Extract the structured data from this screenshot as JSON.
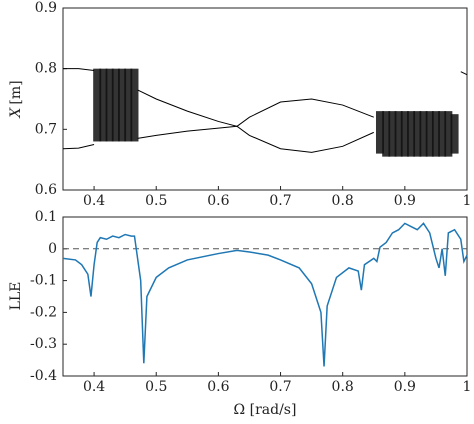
{
  "chart_data": [
    {
      "type": "bifurcation",
      "ylabel_symbol": "X",
      "ylabel_unit": "[m]",
      "x": [
        0.35,
        0.375,
        0.4,
        0.43,
        0.47,
        0.5,
        0.55,
        0.6,
        0.63,
        0.65,
        0.7,
        0.75,
        0.8,
        0.85,
        0.92,
        0.99,
        1.0
      ],
      "series": [
        {
          "name": "upper",
          "color": "#000000",
          "values": [
            0.8,
            0.8,
            0.797,
            null,
            0.765,
            0.75,
            0.73,
            0.713,
            0.705,
            0.72,
            0.745,
            0.75,
            0.74,
            0.72,
            null,
            0.795,
            0.79
          ]
        },
        {
          "name": "lower",
          "color": "#000000",
          "values": [
            0.668,
            0.669,
            0.675,
            null,
            0.685,
            0.69,
            0.697,
            0.702,
            0.705,
            0.69,
            0.668,
            0.662,
            0.672,
            0.695,
            null,
            null,
            null
          ]
        }
      ],
      "bands": [
        {
          "x": [
            0.405,
            0.415,
            0.425,
            0.435,
            0.445,
            0.455,
            0.465
          ],
          "low": [
            0.68,
            0.68,
            0.68,
            0.68,
            0.68,
            0.68,
            0.68
          ],
          "high": [
            0.8,
            0.8,
            0.8,
            0.8,
            0.8,
            0.8,
            0.8
          ]
        },
        {
          "x": [
            0.86,
            0.87,
            0.88,
            0.89,
            0.9,
            0.91,
            0.92,
            0.93,
            0.94,
            0.95,
            0.96,
            0.97,
            0.98
          ],
          "low": [
            0.66,
            0.655,
            0.655,
            0.655,
            0.655,
            0.655,
            0.655,
            0.655,
            0.655,
            0.655,
            0.655,
            0.655,
            0.66
          ],
          "high": [
            0.73,
            0.73,
            0.73,
            0.73,
            0.73,
            0.73,
            0.73,
            0.73,
            0.73,
            0.73,
            0.73,
            0.73,
            0.725
          ]
        }
      ],
      "xlim": [
        0.35,
        1.0
      ],
      "xticks": [
        0.4,
        0.5,
        0.6,
        0.7,
        0.8,
        0.9,
        1
      ],
      "ylim": [
        0.6,
        0.9
      ],
      "yticks": [
        0.6,
        0.7,
        0.8,
        0.9
      ]
    },
    {
      "type": "line",
      "ylabel": "LLE",
      "xlabel": "Ω [rad/s]",
      "reference_line": 0,
      "x": [
        0.35,
        0.37,
        0.38,
        0.39,
        0.395,
        0.4,
        0.405,
        0.41,
        0.42,
        0.43,
        0.44,
        0.45,
        0.46,
        0.465,
        0.47,
        0.475,
        0.48,
        0.485,
        0.5,
        0.52,
        0.55,
        0.6,
        0.63,
        0.65,
        0.68,
        0.7,
        0.73,
        0.75,
        0.765,
        0.77,
        0.775,
        0.79,
        0.81,
        0.825,
        0.83,
        0.835,
        0.85,
        0.855,
        0.86,
        0.87,
        0.88,
        0.89,
        0.9,
        0.91,
        0.92,
        0.93,
        0.94,
        0.95,
        0.955,
        0.96,
        0.965,
        0.97,
        0.98,
        0.99,
        0.995,
        1.0
      ],
      "series": [
        {
          "name": "LLE",
          "color": "#1f77b4",
          "values": [
            -0.03,
            -0.035,
            -0.05,
            -0.08,
            -0.15,
            -0.05,
            0.02,
            0.035,
            0.03,
            0.04,
            0.035,
            0.045,
            0.04,
            0.04,
            -0.03,
            -0.1,
            -0.36,
            -0.15,
            -0.09,
            -0.06,
            -0.035,
            -0.015,
            -0.005,
            -0.01,
            -0.02,
            -0.035,
            -0.06,
            -0.11,
            -0.2,
            -0.37,
            -0.18,
            -0.09,
            -0.06,
            -0.07,
            -0.13,
            -0.05,
            -0.03,
            -0.04,
            0.005,
            0.02,
            0.05,
            0.06,
            0.08,
            0.07,
            0.06,
            0.08,
            0.05,
            -0.03,
            -0.06,
            0.0,
            -0.085,
            0.05,
            0.06,
            0.03,
            -0.04,
            -0.02
          ]
        }
      ],
      "xlim": [
        0.35,
        1.0
      ],
      "xticks": [
        0.4,
        0.5,
        0.6,
        0.7,
        0.8,
        0.9,
        1
      ],
      "ylim": [
        -0.4,
        0.1
      ],
      "yticks": [
        -0.4,
        -0.3,
        -0.2,
        -0.1,
        0,
        0.1
      ]
    }
  ]
}
